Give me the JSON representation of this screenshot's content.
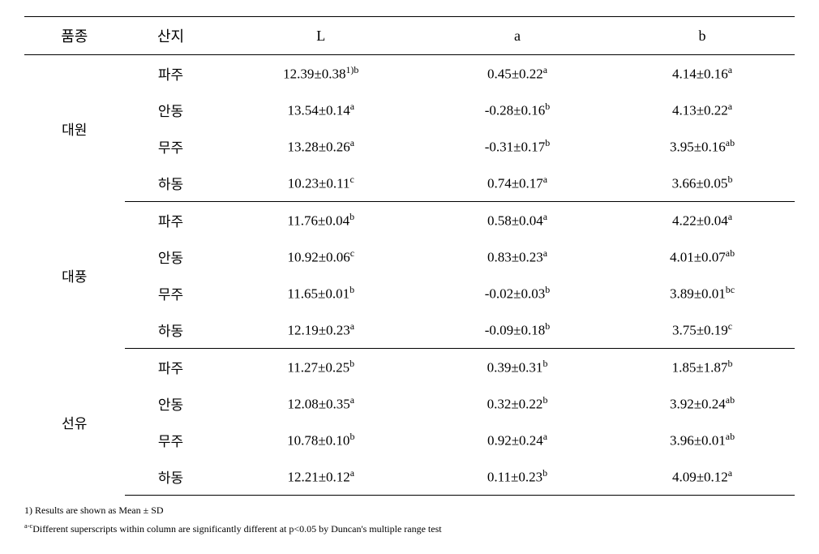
{
  "headers": {
    "variety": "품종",
    "region": "산지",
    "L": "L",
    "a": "a",
    "b": "b"
  },
  "groups": [
    {
      "variety": "대원",
      "rows": [
        {
          "region": "파주",
          "L_val": "12.39±0.38",
          "L_sup": "1)b",
          "a_val": "0.45±0.22",
          "a_sup": "a",
          "b_val": "4.14±0.16",
          "b_sup": "a"
        },
        {
          "region": "안동",
          "L_val": "13.54±0.14",
          "L_sup": "a",
          "a_val": "-0.28±0.16",
          "a_sup": "b",
          "b_val": "4.13±0.22",
          "b_sup": "a"
        },
        {
          "region": "무주",
          "L_val": "13.28±0.26",
          "L_sup": "a",
          "a_val": "-0.31±0.17",
          "a_sup": "b",
          "b_val": "3.95±0.16",
          "b_sup": "ab"
        },
        {
          "region": "하동",
          "L_val": "10.23±0.11",
          "L_sup": "c",
          "a_val": "0.74±0.17",
          "a_sup": "a",
          "b_val": "3.66±0.05",
          "b_sup": "b"
        }
      ]
    },
    {
      "variety": "대풍",
      "rows": [
        {
          "region": "파주",
          "L_val": "11.76±0.04",
          "L_sup": "b",
          "a_val": "0.58±0.04",
          "a_sup": "a",
          "b_val": "4.22±0.04",
          "b_sup": "a"
        },
        {
          "region": "안동",
          "L_val": "10.92±0.06",
          "L_sup": "c",
          "a_val": "0.83±0.23",
          "a_sup": "a",
          "b_val": "4.01±0.07",
          "b_sup": "ab"
        },
        {
          "region": "무주",
          "L_val": "11.65±0.01",
          "L_sup": "b",
          "a_val": "-0.02±0.03",
          "a_sup": "b",
          "b_val": "3.89±0.01",
          "b_sup": "bc"
        },
        {
          "region": "하동",
          "L_val": "12.19±0.23",
          "L_sup": "a",
          "a_val": "-0.09±0.18",
          "a_sup": "b",
          "b_val": "3.75±0.19",
          "b_sup": "c"
        }
      ]
    },
    {
      "variety": "선유",
      "rows": [
        {
          "region": "파주",
          "L_val": "11.27±0.25",
          "L_sup": "b",
          "a_val": "0.39±0.31",
          "a_sup": "b",
          "b_val": "1.85±1.87",
          "b_sup": "b"
        },
        {
          "region": "안동",
          "L_val": "12.08±0.35",
          "L_sup": "a",
          "a_val": "0.32±0.22",
          "a_sup": "b",
          "b_val": "3.92±0.24",
          "b_sup": "ab"
        },
        {
          "region": "무주",
          "L_val": "10.78±0.10",
          "L_sup": "b",
          "a_val": "0.92±0.24",
          "a_sup": "a",
          "b_val": "3.96±0.01",
          "b_sup": "ab"
        },
        {
          "region": "하동",
          "L_val": "12.21±0.12",
          "L_sup": "a",
          "a_val": "0.11±0.23",
          "a_sup": "b",
          "b_val": "4.09±0.12",
          "b_sup": "a"
        }
      ]
    }
  ],
  "footnotes": {
    "line1_pre": "1) Results are shown as Mean ± SD",
    "line2_sup": "a-c",
    "line2_post": "Different superscripts within column  are significantly different at p<0.05 by Duncan's multiple range test"
  }
}
